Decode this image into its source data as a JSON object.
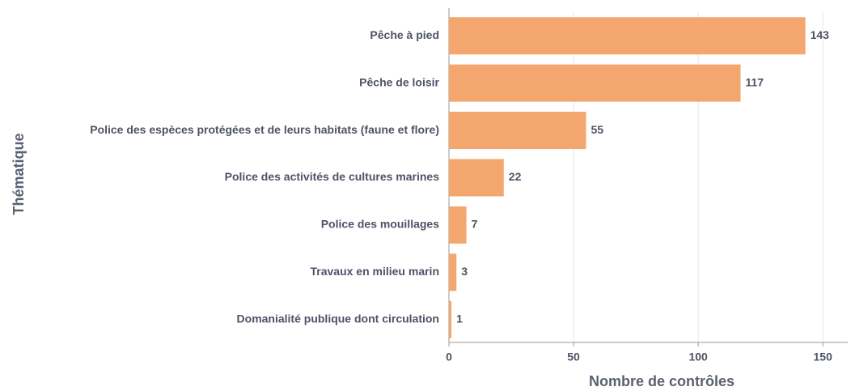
{
  "chart_data": {
    "type": "bar",
    "orientation": "horizontal",
    "categories": [
      "Pêche à pied",
      "Pêche de loisir",
      "Police des espèces protégées et de leurs habitats (faune et flore)",
      "Police des activités de cultures marines",
      "Police des mouillages",
      "Travaux en milieu marin",
      "Domanialité publique dont circulation"
    ],
    "values": [
      143,
      117,
      55,
      22,
      7,
      3,
      1
    ],
    "color": "#f3a76e",
    "xlabel": "Nombre de contrôles",
    "ylabel": "Thématique",
    "xlim": [
      0,
      160
    ],
    "xticks": [
      0,
      50,
      100,
      150
    ],
    "grid": true
  }
}
